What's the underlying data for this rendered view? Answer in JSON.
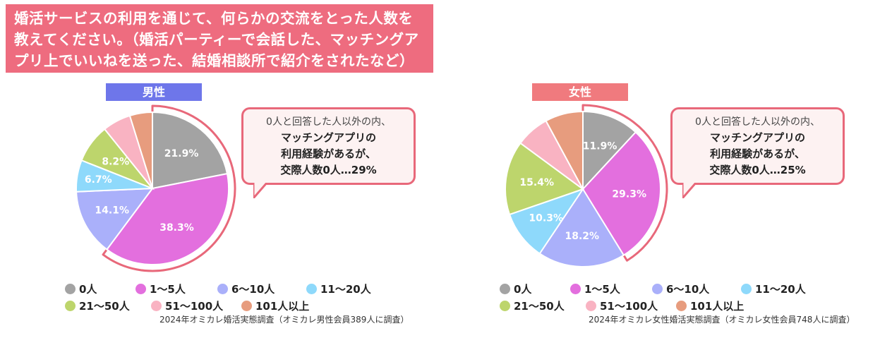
{
  "title": {
    "lines": [
      "婚活サービスの利用を通じて、何らかの交流をとった人数を",
      "教えてください。（婚活パーティーで会話した、マッチングア",
      "プリ上でいいねを送った、結婚相談所で紹介をされたなど）"
    ]
  },
  "colors": {
    "title_bg": "#ee6c7f",
    "male_label_bg": "#6e76ea",
    "female_label_bg": "#f07a7e",
    "highlight": "#e8687a",
    "slices": [
      "#a3a3a3",
      "#e36fde",
      "#aab0fa",
      "#8ed9fb",
      "#bdd56c",
      "#f9b3c2",
      "#e79c7e"
    ]
  },
  "legend": {
    "items": [
      {
        "label": "0人",
        "color": "#a3a3a3"
      },
      {
        "label": "1〜5人",
        "color": "#e36fde"
      },
      {
        "label": "6〜10人",
        "color": "#aab0fa"
      },
      {
        "label": "11〜20人",
        "color": "#8ed9fb"
      },
      {
        "label": "21〜50人",
        "color": "#bdd56c"
      },
      {
        "label": "51〜100人",
        "color": "#f9b3c2"
      },
      {
        "label": "101人以上",
        "color": "#e79c7e"
      }
    ]
  },
  "chart_data": [
    {
      "type": "pie",
      "title": "男性",
      "categories": [
        "0人",
        "1〜5人",
        "6〜10人",
        "11〜20人",
        "21〜50人",
        "51〜100人",
        "101人以上"
      ],
      "values": [
        21.9,
        38.3,
        14.1,
        6.7,
        8.2,
        6.0,
        4.8
      ],
      "labels": [
        "21.9%",
        "38.3%",
        "14.1%",
        "6.7%",
        "8.2%",
        "",
        ""
      ],
      "callout": {
        "line1": "0人と回答した人以外の内、",
        "line2": "マッチングアプリの",
        "line3": "利用経験があるが、",
        "line4": "交際人数0人…29%"
      },
      "source": "2024年オミカレ婚活実態調査（オミカレ男性会員389人に調査）"
    },
    {
      "type": "pie",
      "title": "女性",
      "categories": [
        "0人",
        "1〜5人",
        "6〜10人",
        "11〜20人",
        "21〜50人",
        "51〜100人",
        "101人以上"
      ],
      "values": [
        11.9,
        29.3,
        18.2,
        10.3,
        15.4,
        7.0,
        7.9
      ],
      "labels": [
        "11.9%",
        "29.3%",
        "18.2%",
        "10.3%",
        "15.4%",
        "",
        ""
      ],
      "callout": {
        "line1": "0人と回答した人以外の内、",
        "line2": "マッチングアプリの",
        "line3": "利用経験があるが、",
        "line4": "交際人数0人…25%"
      },
      "source": "2024年オミカレ女性婚活実態調査（オミカレ女性会員748人に調査）"
    }
  ]
}
